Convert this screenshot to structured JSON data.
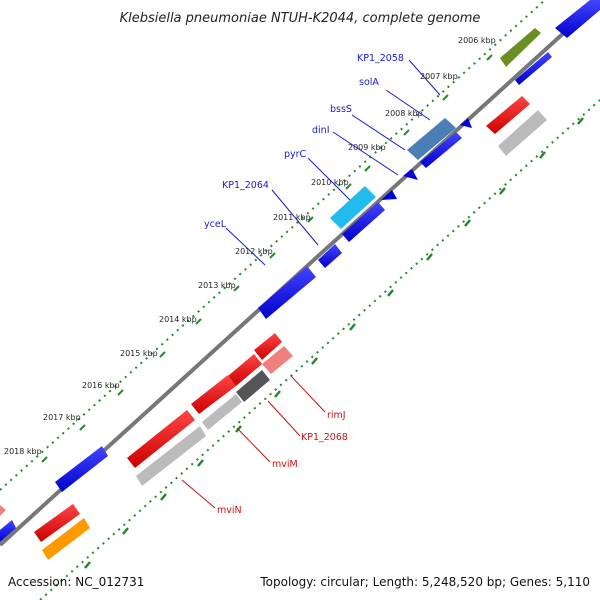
{
  "title": "Klebsiella pneumoniae NTUH-K2044, complete genome",
  "kbp_labels": [
    "2006 kbp",
    "2007 kbp",
    "2008 kbp",
    "2009 kbp",
    "2010 kbp",
    "2011 kbp",
    "2012 kbp",
    "2013 kbp",
    "2014 kbp",
    "2015 kbp",
    "2016 kbp",
    "2017 kbp",
    "2018 kbp"
  ],
  "gene_labels_forward": [
    "KP1_2058",
    "solA",
    "bssS",
    "dinI",
    "pyrC",
    "KP1_2064",
    "yceL"
  ],
  "gene_labels_reverse": [
    "rimJ",
    "KP1_2068",
    "mviM",
    "mviN"
  ],
  "footer": {
    "accession": "Accession: NC_012731",
    "summary": "Topology: circular; Length: 5,248,520 bp; Genes: 5,110"
  },
  "colors": {
    "forward_cds": "#0000dd",
    "reverse_cds": "#ee0000",
    "backbone": "#777777",
    "ticks": "#22882a",
    "label_forward": "#1a1acc",
    "label_reverse": "#cc1111"
  }
}
